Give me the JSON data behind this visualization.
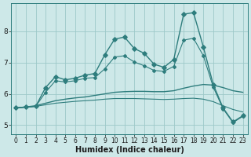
{
  "xlabel": "Humidex (Indice chaleur)",
  "ylabel": "",
  "bg_color": "#cde8e8",
  "grid_color": "#9dc8c8",
  "line_color": "#2e7d7d",
  "xlim": [
    -0.5,
    23.5
  ],
  "ylim": [
    4.7,
    8.9
  ],
  "yticks": [
    5,
    6,
    7,
    8
  ],
  "xticks": [
    0,
    1,
    2,
    3,
    4,
    5,
    6,
    7,
    8,
    9,
    10,
    11,
    12,
    13,
    14,
    15,
    16,
    17,
    18,
    19,
    20,
    21,
    22,
    23
  ],
  "series": [
    {
      "x": [
        0,
        1,
        2,
        3,
        4,
        5,
        6,
        7,
        8,
        9,
        10,
        11,
        12,
        13,
        14,
        15,
        16,
        17,
        18,
        19,
        20,
        21,
        22,
        23
      ],
      "y": [
        5.55,
        5.58,
        5.6,
        6.2,
        6.55,
        6.45,
        6.5,
        6.6,
        6.65,
        7.25,
        7.75,
        7.82,
        7.45,
        7.3,
        6.95,
        6.85,
        7.1,
        8.55,
        8.6,
        7.5,
        6.3,
        5.55,
        5.1,
        5.3
      ],
      "marker": "D",
      "markersize": 2.8,
      "linewidth": 1.0,
      "zorder": 3
    },
    {
      "x": [
        0,
        1,
        2,
        3,
        4,
        5,
        6,
        7,
        8,
        9,
        10,
        11,
        12,
        13,
        14,
        15,
        16,
        17,
        18,
        19,
        20,
        21,
        22,
        23
      ],
      "y": [
        5.55,
        5.58,
        5.6,
        6.05,
        6.42,
        6.38,
        6.42,
        6.5,
        6.52,
        6.8,
        7.18,
        7.22,
        7.02,
        6.9,
        6.75,
        6.72,
        6.88,
        7.72,
        7.78,
        7.22,
        6.22,
        5.52,
        5.08,
        5.28
      ],
      "marker": "D",
      "markersize": 2.0,
      "linewidth": 0.8,
      "zorder": 3
    },
    {
      "x": [
        0,
        1,
        2,
        3,
        4,
        5,
        6,
        7,
        8,
        9,
        10,
        11,
        12,
        13,
        14,
        15,
        16,
        17,
        18,
        19,
        20,
        21,
        22,
        23
      ],
      "y": [
        5.55,
        5.58,
        5.62,
        5.7,
        5.78,
        5.83,
        5.87,
        5.9,
        5.95,
        6.0,
        6.05,
        6.07,
        6.08,
        6.08,
        6.07,
        6.07,
        6.1,
        6.18,
        6.25,
        6.3,
        6.28,
        6.2,
        6.1,
        6.05
      ],
      "marker": null,
      "markersize": 0,
      "linewidth": 1.0,
      "zorder": 2
    },
    {
      "x": [
        0,
        1,
        2,
        3,
        4,
        5,
        6,
        7,
        8,
        9,
        10,
        11,
        12,
        13,
        14,
        15,
        16,
        17,
        18,
        19,
        20,
        21,
        22,
        23
      ],
      "y": [
        5.55,
        5.57,
        5.6,
        5.65,
        5.7,
        5.73,
        5.76,
        5.78,
        5.8,
        5.83,
        5.85,
        5.85,
        5.85,
        5.84,
        5.83,
        5.82,
        5.83,
        5.85,
        5.86,
        5.83,
        5.75,
        5.62,
        5.5,
        5.42
      ],
      "marker": null,
      "markersize": 0,
      "linewidth": 0.8,
      "zorder": 2
    }
  ]
}
